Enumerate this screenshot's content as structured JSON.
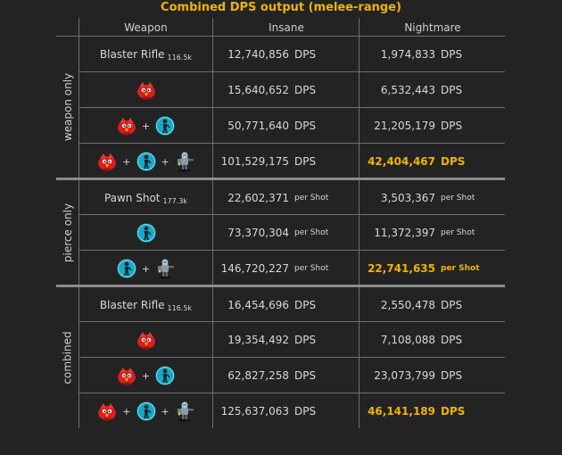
{
  "title": "Combined DPS output (melee-range)",
  "headers": {
    "weapon": "Weapon",
    "insane": "Insane",
    "nightmare": "Nightmare"
  },
  "groups": {
    "weapon_only": "weapon only",
    "pierce_only": "pierce only",
    "combined": "combined"
  },
  "units": {
    "dps": "DPS",
    "per_shot": "per Shot"
  },
  "colors": {
    "highlight": "#f0b400",
    "grid": "#6e6e6e",
    "separator": "#8c8c8c",
    "background": "#232323"
  },
  "rows": [
    {
      "weapon": "Blaster Rifle",
      "sub": "116.5k",
      "insane": "12,740,856",
      "nightmare": "1,974,833"
    },
    {
      "icons": [
        "red-bird-icon"
      ],
      "insane": "15,640,652",
      "nightmare": "6,532,443"
    },
    {
      "icons": [
        "red-bird-icon",
        "cyan-pawn-icon"
      ],
      "insane": "50,771,640",
      "nightmare": "21,205,179"
    },
    {
      "icons": [
        "red-bird-icon",
        "cyan-pawn-icon",
        "robot-gunner-icon"
      ],
      "insane": "101,529,175",
      "nightmare": "42,404,467",
      "best": true
    },
    {
      "weapon": "Pawn Shot",
      "sub": "177.3k",
      "insane": "22,602,371",
      "nightmare": "3,503,367"
    },
    {
      "icons": [
        "cyan-pawn-icon"
      ],
      "insane": "73,370,304",
      "nightmare": "11,372,397"
    },
    {
      "icons": [
        "cyan-pawn-icon",
        "robot-gunner-icon"
      ],
      "insane": "146,720,227",
      "nightmare": "22,741,635",
      "best": true
    },
    {
      "weapon": "Blaster Rifle",
      "sub": "116.5k",
      "insane": "16,454,696",
      "nightmare": "2,550,478"
    },
    {
      "icons": [
        "red-bird-icon"
      ],
      "insane": "19,354,492",
      "nightmare": "7,108,088"
    },
    {
      "icons": [
        "red-bird-icon",
        "cyan-pawn-icon"
      ],
      "insane": "62,827,258",
      "nightmare": "23,073,799"
    },
    {
      "icons": [
        "red-bird-icon",
        "cyan-pawn-icon",
        "robot-gunner-icon"
      ],
      "insane": "125,637,063",
      "nightmare": "46,141,189",
      "best": true
    }
  ]
}
